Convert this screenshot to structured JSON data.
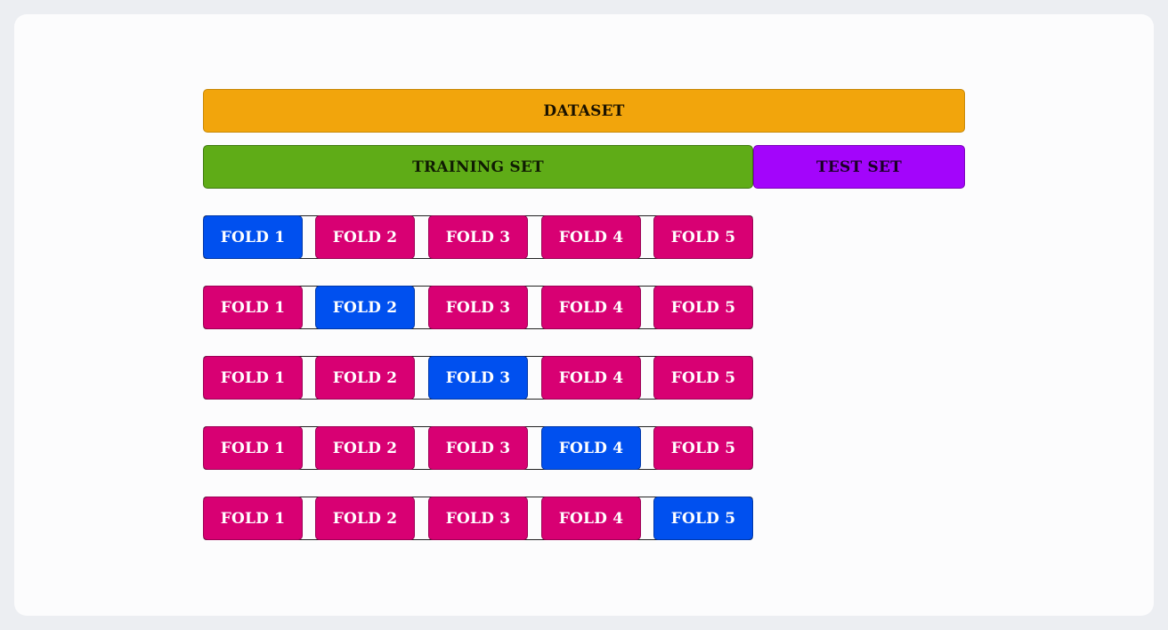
{
  "colors": {
    "dataset": "#f2a50c",
    "training": "#5fac17",
    "test": "#a305fb",
    "train_fold": "#d80073",
    "validation_fold": "#0050ef"
  },
  "dataset": {
    "label": "DATASET"
  },
  "training_set": {
    "label": "TRAINING SET"
  },
  "test_set": {
    "label": "TEST SET"
  },
  "folds": {
    "labels": [
      "FOLD 1",
      "FOLD 2",
      "FOLD 3",
      "FOLD 4",
      "FOLD 5"
    ],
    "rows": [
      {
        "highlighted": 0
      },
      {
        "highlighted": 1
      },
      {
        "highlighted": 2
      },
      {
        "highlighted": 3
      },
      {
        "highlighted": 4
      }
    ]
  }
}
